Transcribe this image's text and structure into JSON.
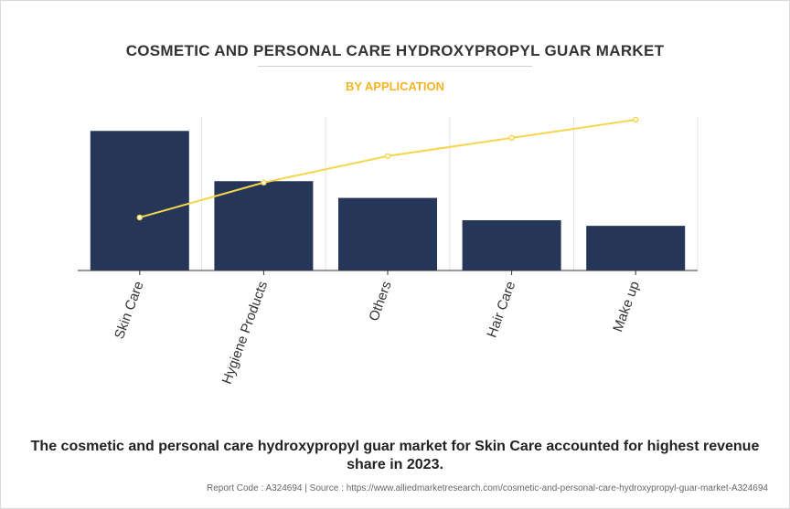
{
  "header": {
    "title": "COSMETIC AND PERSONAL CARE HYDROXYPROPYL GUAR MARKET",
    "subtitle": "BY APPLICATION"
  },
  "chart_data": {
    "type": "bar",
    "categories": [
      "Skin Care",
      "Hygiene Products",
      "Others",
      "Hair Care",
      "Make up"
    ],
    "series": [
      {
        "type": "bar",
        "values": [
          100,
          64,
          52,
          36,
          32
        ]
      },
      {
        "type": "line",
        "values": [
          38,
          63,
          82,
          95,
          108
        ]
      }
    ],
    "ylim": [
      0,
      110
    ],
    "grid": "vertical",
    "colors": {
      "bar": "#253658",
      "line": "#f7d54a",
      "axis": "#333333",
      "grid": "#e3e3e3"
    }
  },
  "caption": "The cosmetic and personal care hydroxypropyl guar market for Skin Care accounted for highest revenue share in 2023.",
  "footer": {
    "report_code": "Report Code : A324694",
    "separator": "|",
    "source": "Source : https://www.alliedmarketresearch.com/cosmetic-and-personal-care-hydroxypropyl-guar-market-A324694"
  }
}
